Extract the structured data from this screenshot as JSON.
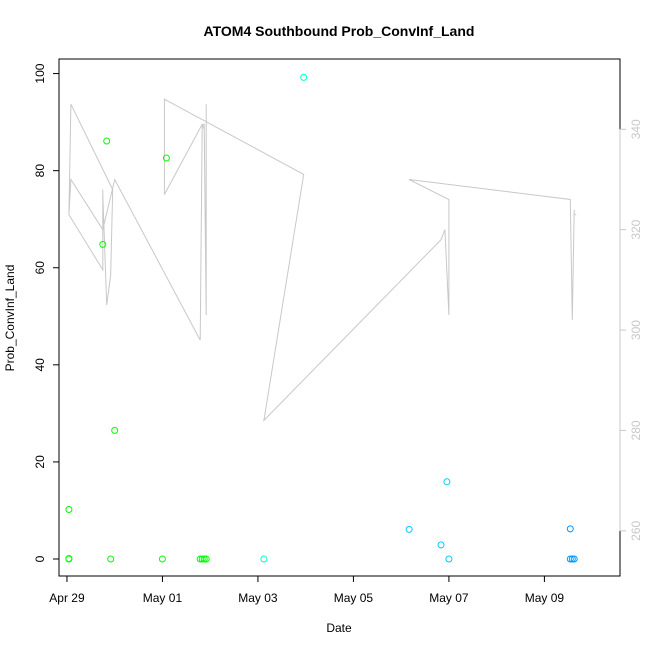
{
  "chart_data": {
    "type": "scatter",
    "title": "ATOM4 Southbound Prob_ConvInf_Land",
    "xlabel": "Date",
    "ylabel": "Prob_ConvInf_Land",
    "xlim": [
      "2024-04-28 20:00",
      "2024-05-10 14:00"
    ],
    "ylim": [
      -3.5,
      103
    ],
    "y_ticks": [
      0,
      20,
      40,
      60,
      80,
      100
    ],
    "x_ticks": [
      {
        "date": "2024-04-29",
        "label": "Apr 29"
      },
      {
        "date": "2024-05-01",
        "label": "May 01"
      },
      {
        "date": "2024-05-03",
        "label": "May 03"
      },
      {
        "date": "2024-05-05",
        "label": "May 05"
      },
      {
        "date": "2024-05-07",
        "label": "May 07"
      },
      {
        "date": "2024-05-09",
        "label": "May 09"
      }
    ],
    "y2lim": [
      251,
      354
    ],
    "y2_ticks": [
      260,
      280,
      300,
      320,
      340
    ],
    "grid": false,
    "legend": "none",
    "series": [
      {
        "color": "#00ff00",
        "points": [
          {
            "x": "2024-04-29 01:00",
            "y": 0
          },
          {
            "x": "2024-04-29 01:00",
            "y": 0.1
          },
          {
            "x": "2024-04-29 01:00",
            "y": 10.2
          },
          {
            "x": "2024-04-29 18:00",
            "y": 64.8
          },
          {
            "x": "2024-04-29 20:00",
            "y": 86.1
          },
          {
            "x": "2024-04-29 22:00",
            "y": 0
          },
          {
            "x": "2024-04-30 00:00",
            "y": 26.5
          },
          {
            "x": "2024-05-01 00:00",
            "y": 0
          },
          {
            "x": "2024-05-01 02:00",
            "y": 82.6
          },
          {
            "x": "2024-05-01 19:00",
            "y": 0
          },
          {
            "x": "2024-05-01 20:00",
            "y": 0
          },
          {
            "x": "2024-05-01 21:00",
            "y": 0
          },
          {
            "x": "2024-05-01 22:00",
            "y": 0
          }
        ]
      },
      {
        "color": "#00ffcc",
        "points": [
          {
            "x": "2024-05-03 03:00",
            "y": 0
          },
          {
            "x": "2024-05-03 23:00",
            "y": 99.2
          }
        ]
      },
      {
        "color": "#00ccff",
        "points": [
          {
            "x": "2024-05-06 04:00",
            "y": 6.1
          },
          {
            "x": "2024-05-06 20:00",
            "y": 2.9
          },
          {
            "x": "2024-05-06 23:00",
            "y": 15.9
          },
          {
            "x": "2024-05-07 00:00",
            "y": 0
          }
        ]
      },
      {
        "color": "#0099ff",
        "points": [
          {
            "x": "2024-05-09 13:00",
            "y": 0
          },
          {
            "x": "2024-05-09 13:00",
            "y": 6.2
          },
          {
            "x": "2024-05-09 14:00",
            "y": 0
          },
          {
            "x": "2024-05-09 15:00",
            "y": 0
          }
        ]
      }
    ],
    "line_series": {
      "color": "#c8c8c8",
      "axis": "right",
      "points": [
        {
          "x": "2024-04-29 01:00",
          "y": 323
        },
        {
          "x": "2024-04-29 02:00",
          "y": 345
        },
        {
          "x": "2024-04-29 23:00",
          "y": 328
        },
        {
          "x": "2024-04-29 22:00",
          "y": 311
        },
        {
          "x": "2024-04-29 20:00",
          "y": 305
        },
        {
          "x": "2024-04-29 18:00",
          "y": 327
        },
        {
          "x": "2024-04-29 18:00",
          "y": 328
        },
        {
          "x": "2024-04-29 18:00",
          "y": 312
        },
        {
          "x": "2024-04-29 01:00",
          "y": 323
        },
        {
          "x": "2024-04-29 02:00",
          "y": 330
        },
        {
          "x": "2024-04-29 18:00",
          "y": 320
        },
        {
          "x": "2024-04-30 00:00",
          "y": 330
        },
        {
          "x": "2024-05-01 19:00",
          "y": 298
        },
        {
          "x": "2024-05-01 20:00",
          "y": 341
        },
        {
          "x": "2024-05-01 21:00",
          "y": 340
        },
        {
          "x": "2024-05-01 22:00",
          "y": 303
        },
        {
          "x": "2024-05-01 22:00",
          "y": 345
        },
        {
          "x": "2024-05-01 22:00",
          "y": 306
        },
        {
          "x": "2024-05-01 21:00",
          "y": 341
        },
        {
          "x": "2024-05-01 20:00",
          "y": 341
        },
        {
          "x": "2024-05-01 01:00",
          "y": 327
        },
        {
          "x": "2024-05-01 01:00",
          "y": 346
        },
        {
          "x": "2024-05-03 23:00",
          "y": 331
        },
        {
          "x": "2024-05-03 03:00",
          "y": 282
        },
        {
          "x": "2024-05-06 20:00",
          "y": 318
        },
        {
          "x": "2024-05-06 22:00",
          "y": 320
        },
        {
          "x": "2024-05-07 00:00",
          "y": 303
        },
        {
          "x": "2024-05-07 00:00",
          "y": 326
        },
        {
          "x": "2024-05-06 04:00",
          "y": 330
        },
        {
          "x": "2024-05-09 13:00",
          "y": 326
        },
        {
          "x": "2024-05-09 14:00",
          "y": 302
        },
        {
          "x": "2024-05-09 15:00",
          "y": 324
        },
        {
          "x": "2024-05-09 15:00",
          "y": 323
        },
        {
          "x": "2024-05-09 16:00",
          "y": 323
        }
      ]
    }
  }
}
